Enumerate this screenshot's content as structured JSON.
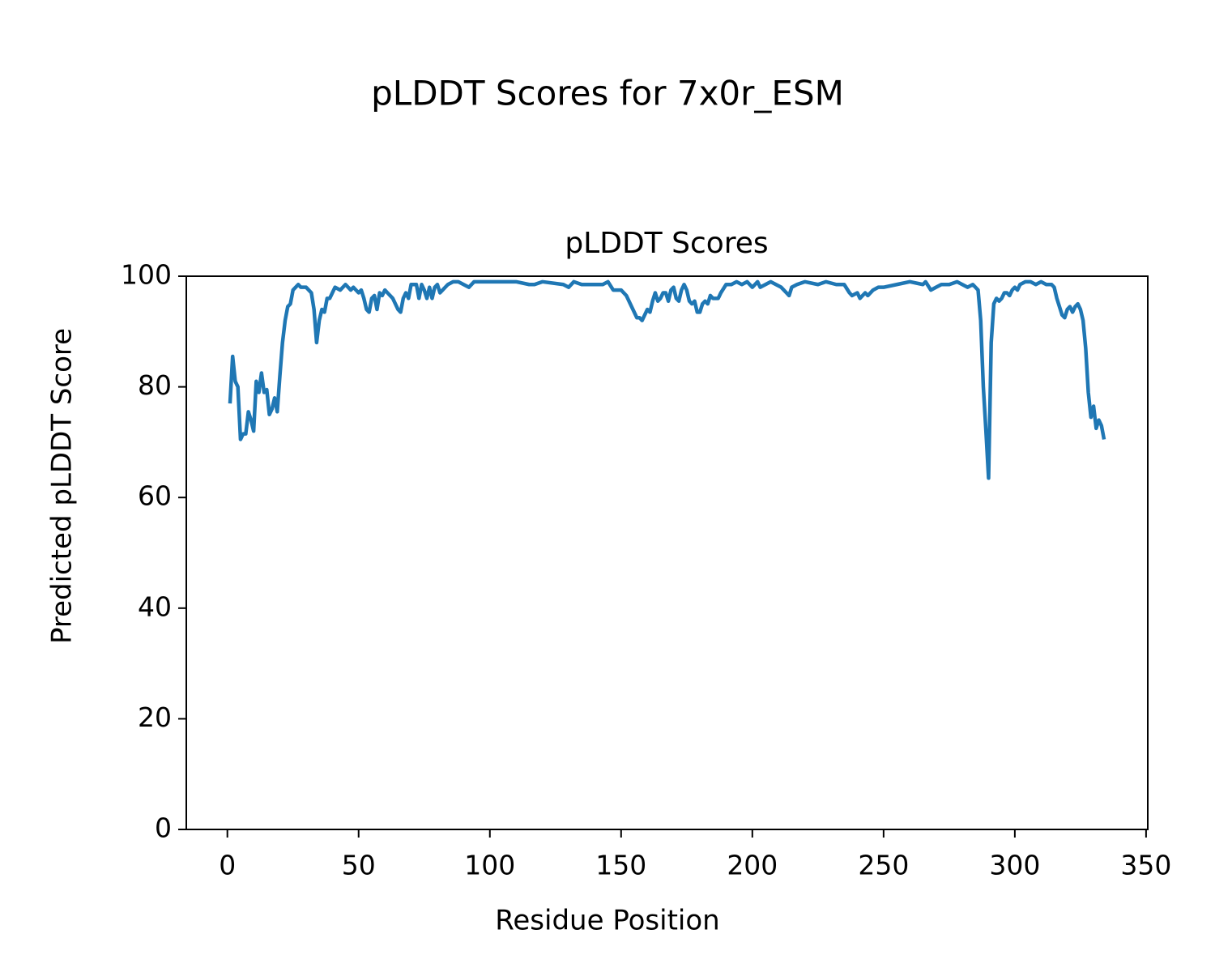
{
  "chart_data": {
    "type": "line",
    "title": "pLDDT Scores for 7x0r_ESM",
    "subtitle": "pLDDT Scores",
    "x_label": "Residue Position",
    "y_label": "Predicted pLDDT Score",
    "xlim": [
      -15.65,
      350.65
    ],
    "ylim": [
      0,
      100
    ],
    "xticks": [
      0,
      50,
      100,
      150,
      200,
      250,
      300,
      350
    ],
    "yticks": [
      0,
      20,
      40,
      60,
      80,
      100
    ],
    "grid": false,
    "series": [
      {
        "name": "pLDDT",
        "color": "#1f77b4",
        "x": [
          1,
          2,
          3,
          4,
          5,
          6,
          7,
          8,
          9,
          10,
          11,
          12,
          13,
          14,
          15,
          16,
          17,
          18,
          19,
          20,
          21,
          22,
          23,
          24,
          25,
          26,
          27,
          28,
          30,
          32,
          33,
          34,
          35,
          36,
          37,
          38,
          39,
          40,
          41,
          43,
          45,
          47,
          48,
          50,
          51,
          52,
          53,
          54,
          55,
          56,
          57,
          58,
          59,
          60,
          61,
          63,
          65,
          66,
          67,
          68,
          69,
          70,
          72,
          73,
          74,
          75,
          76,
          77,
          78,
          79,
          80,
          81,
          82,
          84,
          86,
          88,
          90,
          92,
          94,
          100,
          110,
          115,
          117,
          120,
          128,
          130,
          132,
          135,
          138,
          140,
          143,
          145,
          147,
          150,
          152,
          153,
          155,
          156,
          157,
          158,
          159,
          160,
          161,
          162,
          163,
          164,
          165,
          166,
          167,
          168,
          169,
          170,
          171,
          172,
          173,
          174,
          175,
          176,
          177,
          178,
          179,
          180,
          181,
          182,
          183,
          184,
          185,
          186,
          187,
          188,
          190,
          192,
          194,
          196,
          198,
          200,
          202,
          203,
          205,
          207,
          209,
          211,
          213,
          214,
          215,
          217,
          220,
          225,
          228,
          232,
          235,
          237,
          238,
          240,
          241,
          243,
          244,
          246,
          248,
          250,
          255,
          260,
          265,
          266,
          268,
          270,
          272,
          275,
          278,
          280,
          282,
          284,
          286,
          287,
          288,
          289,
          290,
          291,
          292,
          293,
          294,
          295,
          296,
          297,
          298,
          299,
          300,
          301,
          302,
          304,
          306,
          308,
          310,
          312,
          314,
          315,
          316,
          317,
          318,
          319,
          320,
          321,
          322,
          323,
          324,
          325,
          326,
          327,
          328,
          329,
          330,
          331,
          332,
          333,
          334
        ],
        "values": [
          77,
          85.5,
          81,
          80,
          70.5,
          71.5,
          71.5,
          75.5,
          74,
          72,
          81,
          79,
          82.5,
          79,
          79.5,
          75,
          76,
          78,
          75.5,
          82,
          88,
          92,
          94.5,
          95,
          97.5,
          98,
          98.5,
          98,
          98,
          97,
          94,
          88,
          92,
          94,
          93.5,
          96,
          96,
          97,
          98,
          97.5,
          98.5,
          97.5,
          98,
          97,
          97.5,
          96,
          94,
          93.5,
          96,
          96.5,
          94,
          97,
          96.5,
          97.5,
          97,
          96,
          94,
          93.5,
          96,
          97,
          96,
          98.5,
          98.5,
          96,
          98.5,
          97.5,
          96,
          98,
          96,
          98,
          98.5,
          97,
          97.5,
          98.5,
          99,
          99,
          98.5,
          98,
          99,
          99,
          99,
          98.5,
          98.5,
          99,
          98.5,
          98,
          99,
          98.5,
          98.5,
          98.5,
          98.5,
          99,
          97.5,
          97.5,
          96.5,
          95.5,
          93.5,
          92.5,
          92.5,
          92,
          93,
          94,
          93.5,
          95.5,
          97,
          95.5,
          96,
          97,
          97,
          95.5,
          97.5,
          98,
          96,
          95.5,
          97.5,
          98.5,
          97.5,
          95.5,
          95,
          95.5,
          93.5,
          93.5,
          95,
          95.5,
          95,
          96.5,
          96,
          96,
          96,
          97,
          98.5,
          98.5,
          99,
          98.5,
          99,
          98,
          99,
          98,
          98.5,
          99,
          98.5,
          98,
          97,
          96.5,
          98,
          98.5,
          99,
          98.5,
          99,
          98.5,
          98.5,
          97,
          96.5,
          97,
          96,
          97,
          96.5,
          97.5,
          98,
          98,
          98.5,
          99,
          98.5,
          99,
          97.5,
          98,
          98.5,
          98.5,
          99,
          98.5,
          98,
          98.5,
          97.5,
          92,
          80,
          72,
          63.5,
          88,
          95,
          96,
          95.5,
          96,
          97,
          97,
          96.5,
          97.5,
          98,
          97.5,
          98.5,
          99,
          99,
          98.5,
          99,
          98.5,
          98.5,
          98,
          96,
          94.5,
          93,
          92.5,
          94,
          94.5,
          93.5,
          94.5,
          95,
          94,
          92,
          87,
          79,
          74.5,
          76.5,
          72.5,
          74,
          73,
          70.5
        ]
      }
    ]
  }
}
